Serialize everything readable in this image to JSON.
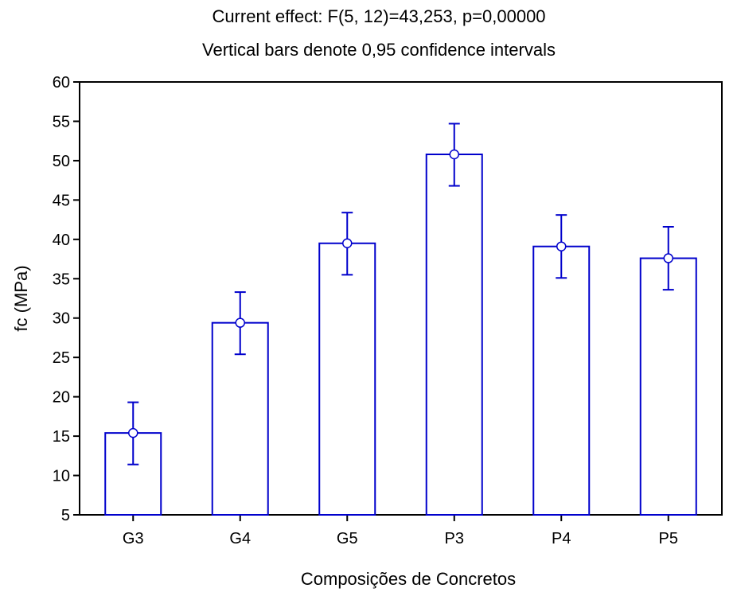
{
  "chart_data": {
    "type": "bar",
    "title_line1": "Current effect: F(5, 12)=43,253, p=0,00000",
    "title_line2": "Vertical bars denote 0,95 confidence intervals",
    "xlabel": "Composições de Concretos",
    "ylabel": "fc (MPa)",
    "ylim": [
      5,
      60
    ],
    "yticks": [
      "5",
      "10",
      "15",
      "20",
      "25",
      "30",
      "35",
      "40",
      "45",
      "50",
      "55",
      "60"
    ],
    "grid": false,
    "categories": [
      "G3",
      "G4",
      "G5",
      "P3",
      "P4",
      "P5"
    ],
    "series": [
      {
        "values": [
          15.4,
          29.4,
          39.5,
          50.8,
          39.1,
          37.6
        ],
        "ci_lower": [
          11.4,
          25.4,
          35.5,
          46.8,
          35.1,
          33.6
        ],
        "ci_upper": [
          19.3,
          33.3,
          43.4,
          54.7,
          43.1,
          41.6
        ]
      }
    ],
    "colors": {
      "bar_outline": "#0000cc",
      "bar_fill": "#ffffff",
      "error_bar": "#0000cc",
      "axis": "#000000"
    }
  }
}
